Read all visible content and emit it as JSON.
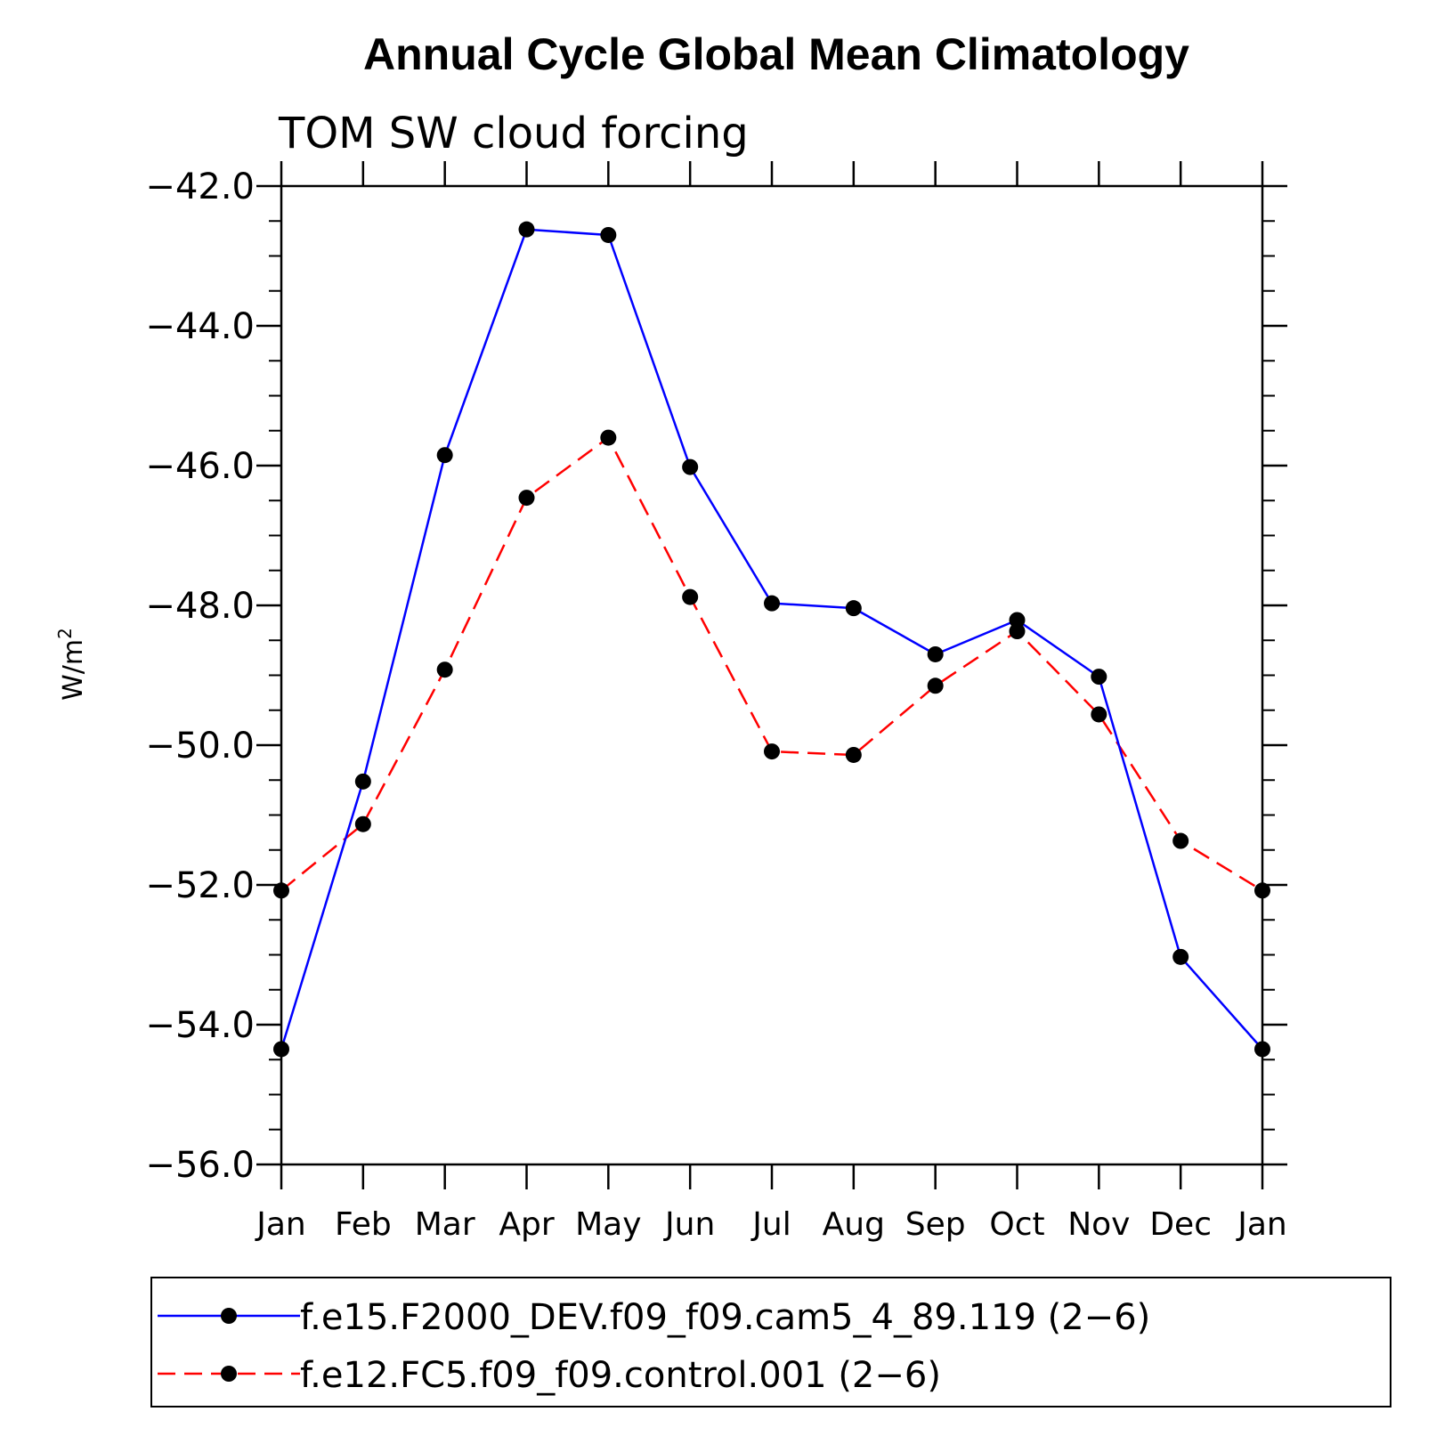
{
  "chart_data": {
    "type": "line",
    "title": "Annual Cycle Global Mean Climatology",
    "subtitle": "TOM SW cloud forcing",
    "xlabel": "",
    "ylabel": "W/m",
    "ylabel_superscript": "2",
    "categories": [
      "Jan",
      "Feb",
      "Mar",
      "Apr",
      "May",
      "Jun",
      "Jul",
      "Aug",
      "Sep",
      "Oct",
      "Nov",
      "Dec",
      "Jan"
    ],
    "ylim": [
      -56.0,
      -42.0
    ],
    "yticks": [
      -42.0,
      -44.0,
      -46.0,
      -48.0,
      -50.0,
      -52.0,
      -54.0,
      -56.0
    ],
    "ytick_labels": [
      "−42.0",
      "−44.0",
      "−46.0",
      "−48.0",
      "−50.0",
      "−52.0",
      "−54.0",
      "−56.0"
    ],
    "grid": false,
    "legend_position": "bottom",
    "series": [
      {
        "name": "f.e15.F2000_DEV.f09_f09.cam5_4_89.119 (2−6)",
        "color": "#0000ff",
        "dash": "solid",
        "marker": "circle",
        "values": [
          -54.35,
          -50.52,
          -45.85,
          -42.62,
          -42.7,
          -46.02,
          -47.97,
          -48.04,
          -48.7,
          -48.21,
          -49.02,
          -53.03,
          -54.35
        ]
      },
      {
        "name": "f.e12.FC5.f09_f09.control.001 (2−6)",
        "color": "#ff0000",
        "dash": "dashed",
        "marker": "circle",
        "values": [
          -52.08,
          -51.13,
          -48.92,
          -46.46,
          -45.6,
          -47.88,
          -50.09,
          -50.14,
          -49.15,
          -48.37,
          -49.56,
          -51.37,
          -52.08
        ]
      }
    ]
  }
}
